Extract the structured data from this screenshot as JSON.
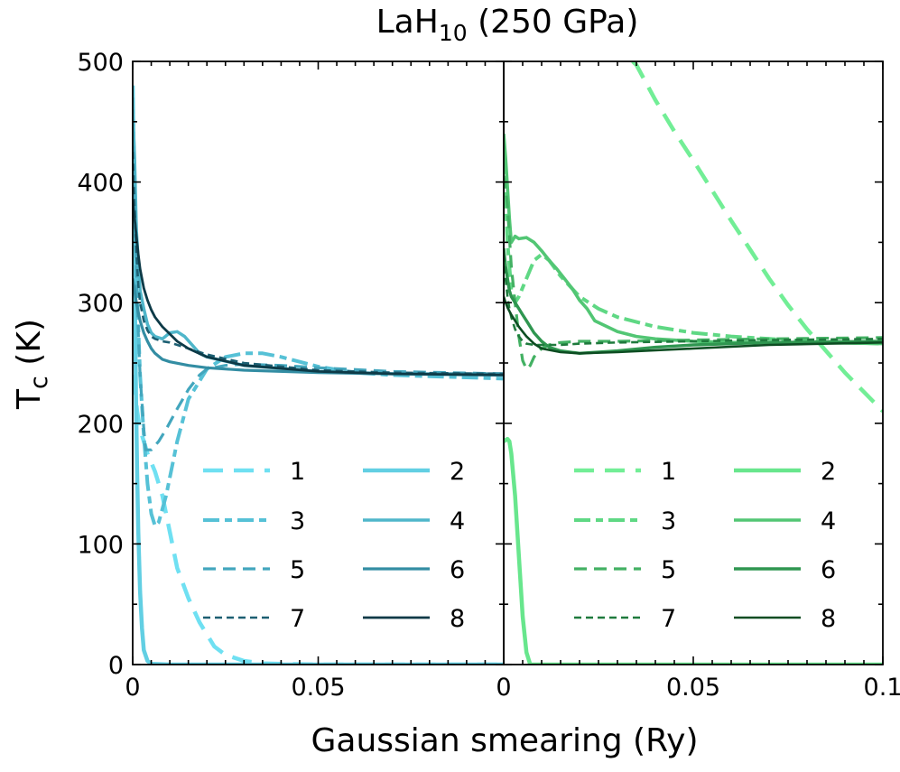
{
  "chart_data": {
    "type": "line",
    "title_main": "LaH",
    "title_sub": "10",
    "title_rest": " (250 GPa)",
    "ylabel_main": "T",
    "ylabel_sub": "c",
    "ylabel_unit": " (K)",
    "xlabel": "Gaussian smearing (Ry)",
    "ylim": [
      0,
      500
    ],
    "yticks": [
      0,
      100,
      200,
      300,
      400,
      500
    ],
    "ytick_labels": [
      "0",
      "100",
      "200",
      "300",
      "400",
      "500"
    ],
    "grid": false,
    "panels": [
      {
        "xlim": [
          0,
          0.1
        ],
        "xticks": [
          0,
          0.05
        ],
        "xtick_labels": [
          "0",
          "0.05"
        ],
        "legend": {
          "position": "lower-right",
          "columns": 2
        },
        "series": [
          {
            "name": "1",
            "color": "#6fe0f2",
            "dash": "long",
            "width": 4.5,
            "x": [
              0,
              0.0006,
              0.0012,
              0.002,
              0.003,
              0.004,
              0.006,
              0.008,
              0.01,
              0.012,
              0.015,
              0.018,
              0.02,
              0.022,
              0.025,
              0.03,
              0.035,
              0.04,
              0.05,
              0.07,
              0.1
            ],
            "y": [
              240,
              228,
              210,
              195,
              185,
              175,
              160,
              140,
              110,
              80,
              55,
              35,
              25,
              15,
              8,
              3,
              1,
              0.5,
              0,
              0,
              0
            ]
          },
          {
            "name": "2",
            "color": "#62cfe3",
            "dash": "solid",
            "width": 4.5,
            "x": [
              0,
              0.0003,
              0.0006,
              0.0009,
              0.0012,
              0.0015,
              0.002,
              0.0025,
              0.003,
              0.004,
              0.005,
              0.01,
              0.05,
              0.1
            ],
            "y": [
              480,
              400,
              300,
              220,
              160,
              110,
              60,
              30,
              12,
              3,
              0.5,
              0,
              0,
              0
            ]
          },
          {
            "name": "3",
            "color": "#56c1d6",
            "dash": "dashdot",
            "width": 4,
            "x": [
              0,
              0.0005,
              0.001,
              0.0015,
              0.002,
              0.003,
              0.004,
              0.005,
              0.006,
              0.007,
              0.009,
              0.012,
              0.015,
              0.02,
              0.025,
              0.03,
              0.035,
              0.04,
              0.05,
              0.06,
              0.07,
              0.08,
              0.09,
              0.1
            ],
            "y": [
              470,
              400,
              330,
              280,
              240,
              190,
              150,
              125,
              115,
              118,
              140,
              185,
              220,
              245,
              255,
              258,
              258,
              255,
              247,
              242,
              240,
              239,
              238,
              237
            ]
          },
          {
            "name": "4",
            "color": "#4fb6ca",
            "dash": "solid",
            "width": 3.5,
            "x": [
              0,
              0.0005,
              0.001,
              0.002,
              0.003,
              0.004,
              0.005,
              0.006,
              0.008,
              0.01,
              0.012,
              0.014,
              0.016,
              0.018,
              0.02,
              0.03,
              0.05,
              0.07,
              0.1
            ],
            "y": [
              460,
              420,
              360,
              310,
              295,
              282,
              275,
              272,
              270,
              275,
              276,
              272,
              265,
              258,
              255,
              248,
              243,
              241,
              240
            ]
          },
          {
            "name": "5",
            "color": "#43a6bd",
            "dash": "dash",
            "width": 3.2,
            "x": [
              0,
              0.0005,
              0.001,
              0.0015,
              0.002,
              0.003,
              0.0035,
              0.005,
              0.007,
              0.009,
              0.012,
              0.015,
              0.018,
              0.02,
              0.025,
              0.03,
              0.04,
              0.05,
              0.07,
              0.1
            ],
            "y": [
              430,
              380,
              320,
              275,
              240,
              195,
              178,
              178,
              185,
              195,
              212,
              228,
              240,
              245,
              248,
              249,
              248,
              246,
              243,
              241
            ]
          },
          {
            "name": "6",
            "color": "#338da3",
            "dash": "solid",
            "width": 3.2,
            "x": [
              0,
              0.0005,
              0.001,
              0.0015,
              0.002,
              0.003,
              0.004,
              0.005,
              0.006,
              0.008,
              0.01,
              0.015,
              0.02,
              0.03,
              0.05,
              0.07,
              0.1
            ],
            "y": [
              320,
              310,
              300,
              292,
              285,
              275,
              268,
              262,
              258,
              253,
              251,
              248,
              246,
              244,
              242,
              241,
              241
            ]
          },
          {
            "name": "7",
            "color": "#1c5f72",
            "dash": "shortdash",
            "width": 2.6,
            "x": [
              0,
              0.0005,
              0.001,
              0.0015,
              0.002,
              0.003,
              0.004,
              0.005,
              0.006,
              0.008,
              0.01,
              0.015,
              0.02,
              0.03,
              0.05,
              0.07,
              0.1
            ],
            "y": [
              425,
              380,
              340,
              315,
              300,
              285,
              277,
              272,
              270,
              268,
              267,
              262,
              257,
              250,
              244,
              242,
              241
            ]
          },
          {
            "name": "8",
            "color": "#0d3a47",
            "dash": "solid",
            "width": 2.8,
            "x": [
              0,
              0.0005,
              0.001,
              0.0015,
              0.002,
              0.003,
              0.004,
              0.005,
              0.006,
              0.008,
              0.01,
              0.012,
              0.015,
              0.02,
              0.03,
              0.05,
              0.07,
              0.1
            ],
            "y": [
              385,
              370,
              355,
              340,
              328,
              312,
              302,
              294,
              288,
              280,
              274,
              268,
              262,
              255,
              248,
              243,
              241,
              240
            ]
          }
        ]
      },
      {
        "xlim": [
          0,
          0.1
        ],
        "xticks": [
          0,
          0.05,
          0.1
        ],
        "xtick_labels": [
          "0",
          "0.05",
          "0.1"
        ],
        "legend": {
          "position": "lower-right",
          "columns": 2
        },
        "series": [
          {
            "name": "1",
            "color": "#72ee96",
            "dash": "long",
            "width": 4.5,
            "x": [
              0.034,
              0.035,
              0.04,
              0.045,
              0.05,
              0.055,
              0.06,
              0.065,
              0.07,
              0.075,
              0.08,
              0.085,
              0.09,
              0.095,
              0.1
            ],
            "y": [
              500,
              497,
              468,
              442,
              418,
              393,
              368,
              344,
              320,
              298,
              278,
              260,
              242,
              226,
              210
            ]
          },
          {
            "name": "2",
            "color": "#68e68d",
            "dash": "solid",
            "width": 4.5,
            "x": [
              0,
              0.001,
              0.0015,
              0.002,
              0.003,
              0.004,
              0.005,
              0.006,
              0.007,
              0.01,
              0.05,
              0.1
            ],
            "y": [
              185,
              187,
              185,
              175,
              140,
              90,
              40,
              10,
              0,
              0,
              0,
              0
            ]
          },
          {
            "name": "3",
            "color": "#5fd884",
            "dash": "dashdot",
            "width": 4,
            "x": [
              0,
              0.0005,
              0.001,
              0.002,
              0.003,
              0.004,
              0.006,
              0.008,
              0.01,
              0.012,
              0.015,
              0.02,
              0.025,
              0.03,
              0.04,
              0.05,
              0.06,
              0.07,
              0.08,
              0.1
            ],
            "y": [
              420,
              390,
              350,
              310,
              300,
              305,
              320,
              335,
              340,
              335,
              322,
              305,
              295,
              288,
              280,
              275,
              272,
              270,
              268,
              266
            ]
          },
          {
            "name": "4",
            "color": "#52c674",
            "dash": "solid",
            "width": 3.6,
            "x": [
              0,
              0.0005,
              0.001,
              0.0015,
              0.002,
              0.003,
              0.004,
              0.006,
              0.008,
              0.01,
              0.012,
              0.014,
              0.016,
              0.018,
              0.02,
              0.022,
              0.024,
              0.026,
              0.03,
              0.035,
              0.04,
              0.05,
              0.06,
              0.07,
              0.08,
              0.1
            ],
            "y": [
              440,
              420,
              395,
              370,
              350,
              355,
              353,
              354,
              350,
              343,
              335,
              328,
              320,
              312,
              302,
              295,
              285,
              282,
              276,
              272,
              270,
              268,
              267,
              267,
              267,
              266
            ]
          },
          {
            "name": "5",
            "color": "#43b163",
            "dash": "dash",
            "width": 3.2,
            "x": [
              0,
              0.0005,
              0.001,
              0.0015,
              0.002,
              0.003,
              0.004,
              0.005,
              0.006,
              0.007,
              0.008,
              0.01,
              0.012,
              0.015,
              0.02,
              0.03,
              0.05,
              0.07,
              0.1
            ],
            "y": [
              405,
              395,
              380,
              355,
              330,
              300,
              272,
              252,
              245,
              248,
              255,
              262,
              265,
              267,
              268,
              268,
              269,
              270,
              271
            ]
          },
          {
            "name": "6",
            "color": "#2f9650",
            "dash": "solid",
            "width": 3.4,
            "x": [
              0,
              0.0005,
              0.001,
              0.0015,
              0.002,
              0.003,
              0.004,
              0.005,
              0.006,
              0.008,
              0.01,
              0.012,
              0.015,
              0.02,
              0.03,
              0.04,
              0.05,
              0.07,
              0.1
            ],
            "y": [
              345,
              330,
              320,
              310,
              305,
              300,
              295,
              290,
              285,
              275,
              268,
              263,
              260,
              258,
              260,
              263,
              265,
              267,
              268
            ]
          },
          {
            "name": "7",
            "color": "#1f7a3d",
            "dash": "shortdash",
            "width": 2.6,
            "x": [
              0,
              0.0005,
              0.001,
              0.0015,
              0.002,
              0.003,
              0.004,
              0.005,
              0.006,
              0.008,
              0.01,
              0.015,
              0.02,
              0.03,
              0.05,
              0.07,
              0.1
            ],
            "y": [
              340,
              320,
              305,
              295,
              288,
              278,
              272,
              268,
              266,
              265,
              265,
              265,
              266,
              267,
              268,
              269,
              270
            ]
          },
          {
            "name": "8",
            "color": "#0d4d22",
            "dash": "solid",
            "width": 2.6,
            "x": [
              0,
              0.0005,
              0.001,
              0.0015,
              0.002,
              0.003,
              0.004,
              0.005,
              0.006,
              0.008,
              0.01,
              0.015,
              0.02,
              0.03,
              0.05,
              0.07,
              0.1
            ],
            "y": [
              305,
              300,
              296,
              293,
              290,
              285,
              280,
              276,
              272,
              266,
              262,
              259,
              258,
              259,
              262,
              265,
              267
            ]
          }
        ]
      }
    ]
  }
}
